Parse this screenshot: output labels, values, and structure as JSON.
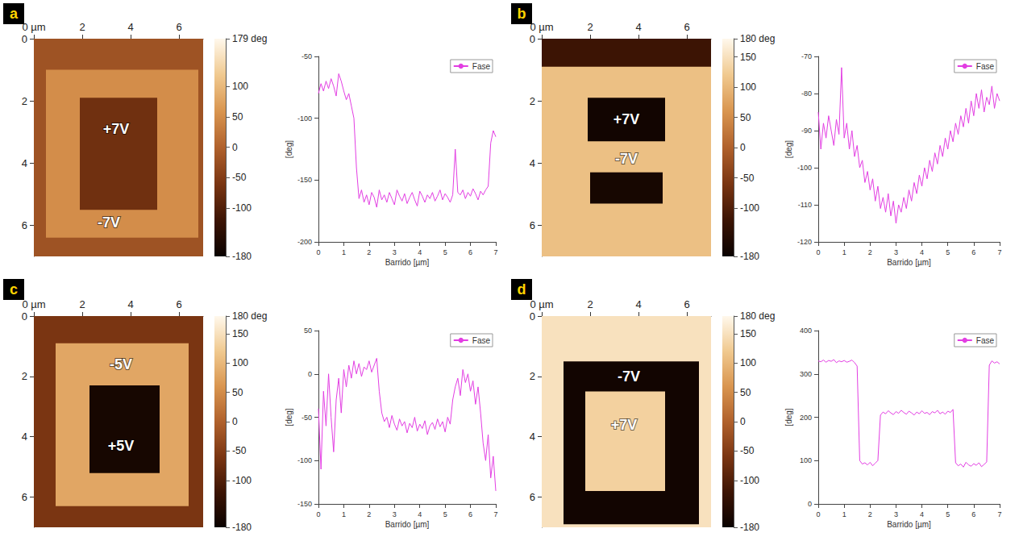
{
  "chart_data": [
    {
      "type": "heatmap",
      "title": "a",
      "xlim": [
        0,
        7
      ],
      "ylim": [
        0,
        7
      ],
      "xticks": [
        {
          "value": 0,
          "label": "0 µm"
        },
        2,
        4,
        6
      ],
      "yticks": [
        0,
        2,
        4,
        6
      ],
      "regions": [
        {
          "x": [
            0,
            7
          ],
          "y": [
            0,
            7
          ],
          "value": -20
        },
        {
          "x": [
            0.5,
            6.8
          ],
          "y": [
            1.0,
            6.4
          ],
          "value": 50
        },
        {
          "x": [
            1.9,
            5.1
          ],
          "y": [
            1.9,
            5.5
          ],
          "value": -70
        }
      ],
      "annotations": [
        {
          "text": "+7V",
          "x": 3.4,
          "y": 2.9
        },
        {
          "text": "-7V",
          "x": 3.1,
          "y": 5.9
        }
      ],
      "colorbar": {
        "range": [
          -180,
          179
        ],
        "ticks": [
          {
            "value": 179,
            "label": "179 deg"
          },
          100,
          50,
          0,
          -50,
          -100,
          -180
        ]
      }
    },
    {
      "type": "line",
      "xlabel": "Barrido [µm]",
      "ylabel": "[deg]",
      "legend": "upper right",
      "grid": false,
      "xlim": [
        0,
        7
      ],
      "xticks": [
        0,
        1,
        2,
        3,
        4,
        5,
        6,
        7
      ],
      "ylim": [
        -200,
        -50
      ],
      "yticks": [
        -200,
        -150,
        -100,
        -50
      ],
      "x": [
        0,
        0.1,
        0.2,
        0.3,
        0.4,
        0.5,
        0.6,
        0.7,
        0.8,
        0.9,
        1,
        1.1,
        1.2,
        1.3,
        1.4,
        1.5,
        1.6,
        1.7,
        1.8,
        1.9,
        2,
        2.1,
        2.2,
        2.3,
        2.4,
        2.5,
        2.6,
        2.7,
        2.8,
        2.9,
        3,
        3.1,
        3.2,
        3.3,
        3.4,
        3.5,
        3.6,
        3.7,
        3.8,
        3.9,
        4,
        4.1,
        4.2,
        4.3,
        4.4,
        4.5,
        4.6,
        4.7,
        4.8,
        4.9,
        5,
        5.1,
        5.2,
        5.3,
        5.4,
        5.5,
        5.6,
        5.7,
        5.8,
        5.9,
        6,
        6.1,
        6.2,
        6.3,
        6.4,
        6.5,
        6.6,
        6.7,
        6.8,
        6.9,
        7
      ],
      "series": [
        {
          "name": "Fase",
          "color": "#e23ee2",
          "values": [
            -80,
            -72,
            -78,
            -70,
            -76,
            -68,
            -74,
            -82,
            -64,
            -70,
            -78,
            -85,
            -80,
            -90,
            -100,
            -140,
            -165,
            -158,
            -168,
            -162,
            -170,
            -160,
            -164,
            -172,
            -158,
            -166,
            -162,
            -168,
            -160,
            -165,
            -170,
            -158,
            -163,
            -167,
            -161,
            -169,
            -164,
            -160,
            -166,
            -171,
            -159,
            -163,
            -168,
            -162,
            -165,
            -160,
            -167,
            -163,
            -158,
            -166,
            -161,
            -164,
            -168,
            -162,
            -125,
            -160,
            -162,
            -158,
            -165,
            -160,
            -163,
            -157,
            -161,
            -166,
            -159,
            -162,
            -158,
            -155,
            -120,
            -110,
            -115
          ]
        }
      ]
    },
    {
      "type": "heatmap",
      "title": "b",
      "xlim": [
        0,
        7
      ],
      "ylim": [
        0,
        7
      ],
      "xticks": [
        {
          "value": 0,
          "label": "0 µm"
        },
        2,
        4,
        6
      ],
      "yticks": [
        0,
        2,
        4,
        6
      ],
      "regions": [
        {
          "x": [
            0,
            7
          ],
          "y": [
            0,
            7
          ],
          "value": -120
        },
        {
          "x": [
            0,
            7
          ],
          "y": [
            0.9,
            7
          ],
          "value": 110
        },
        {
          "x": [
            1.9,
            5.1
          ],
          "y": [
            1.9,
            3.3
          ],
          "value": -170
        },
        {
          "x": [
            2.0,
            5.0
          ],
          "y": [
            4.3,
            5.3
          ],
          "value": -165
        }
      ],
      "annotations": [
        {
          "text": "+7V",
          "x": 3.5,
          "y": 2.6
        },
        {
          "text": "-7V",
          "x": 3.5,
          "y": 3.85
        }
      ],
      "colorbar": {
        "range": [
          -180,
          180
        ],
        "ticks": [
          {
            "value": 180,
            "label": "180 deg"
          },
          150,
          100,
          50,
          0,
          -50,
          -100,
          -180
        ]
      }
    },
    {
      "type": "line",
      "xlabel": "Barrido [µm]",
      "ylabel": "[deg]",
      "legend": "upper right",
      "grid": false,
      "xlim": [
        0,
        7
      ],
      "xticks": [
        0,
        1,
        2,
        3,
        4,
        5,
        6,
        7
      ],
      "ylim": [
        -120,
        -70
      ],
      "yticks": [
        -120,
        -110,
        -100,
        -90,
        -80,
        -70
      ],
      "x": [
        0,
        0.1,
        0.2,
        0.3,
        0.4,
        0.5,
        0.6,
        0.7,
        0.8,
        0.9,
        1,
        1.1,
        1.2,
        1.3,
        1.4,
        1.5,
        1.6,
        1.7,
        1.8,
        1.9,
        2,
        2.1,
        2.2,
        2.3,
        2.4,
        2.5,
        2.6,
        2.7,
        2.8,
        2.9,
        3,
        3.1,
        3.2,
        3.3,
        3.4,
        3.5,
        3.6,
        3.7,
        3.8,
        3.9,
        4,
        4.1,
        4.2,
        4.3,
        4.4,
        4.5,
        4.6,
        4.7,
        4.8,
        4.9,
        5,
        5.1,
        5.2,
        5.3,
        5.4,
        5.5,
        5.6,
        5.7,
        5.8,
        5.9,
        6,
        6.1,
        6.2,
        6.3,
        6.4,
        6.5,
        6.6,
        6.7,
        6.8,
        6.9,
        7
      ],
      "series": [
        {
          "name": "Fase",
          "color": "#e23ee2",
          "values": [
            -85,
            -95,
            -88,
            -92,
            -86,
            -90,
            -94,
            -87,
            -91,
            -73,
            -92,
            -88,
            -95,
            -90,
            -97,
            -94,
            -100,
            -98,
            -104,
            -101,
            -106,
            -103,
            -109,
            -105,
            -111,
            -108,
            -112,
            -107,
            -113,
            -109,
            -115,
            -110,
            -112,
            -108,
            -111,
            -106,
            -109,
            -104,
            -107,
            -102,
            -105,
            -100,
            -103,
            -98,
            -101,
            -96,
            -99,
            -94,
            -97,
            -92,
            -95,
            -90,
            -93,
            -88,
            -91,
            -86,
            -89,
            -84,
            -88,
            -82,
            -86,
            -80,
            -84,
            -79,
            -85,
            -81,
            -83,
            -78,
            -84,
            -80,
            -82
          ]
        }
      ]
    },
    {
      "type": "heatmap",
      "title": "c",
      "xlim": [
        0,
        7
      ],
      "ylim": [
        0,
        7
      ],
      "xticks": [
        {
          "value": 0,
          "label": "0 µm"
        },
        2,
        4,
        6
      ],
      "yticks": [
        0,
        2,
        4,
        6
      ],
      "regions": [
        {
          "x": [
            0,
            7
          ],
          "y": [
            0,
            7
          ],
          "value": -60
        },
        {
          "x": [
            0.9,
            6.4
          ],
          "y": [
            0.9,
            6.3
          ],
          "value": 80
        },
        {
          "x": [
            2.3,
            5.2
          ],
          "y": [
            2.3,
            5.2
          ],
          "value": -165
        }
      ],
      "annotations": [
        {
          "text": "-5V",
          "x": 3.6,
          "y": 1.6
        },
        {
          "text": "+5V",
          "x": 3.6,
          "y": 4.3
        }
      ],
      "colorbar": {
        "range": [
          -180,
          180
        ],
        "ticks": [
          {
            "value": 180,
            "label": "180 deg"
          },
          150,
          100,
          50,
          0,
          -50,
          -100,
          -180
        ]
      }
    },
    {
      "type": "line",
      "xlabel": "Barrido [µm]",
      "ylabel": "[deg]",
      "legend": "upper right",
      "grid": false,
      "xlim": [
        0,
        7
      ],
      "xticks": [
        0,
        1,
        2,
        3,
        4,
        5,
        6,
        7
      ],
      "ylim": [
        -150,
        50
      ],
      "yticks": [
        -150,
        -100,
        -50,
        0,
        50
      ],
      "x": [
        0,
        0.1,
        0.2,
        0.3,
        0.4,
        0.5,
        0.6,
        0.7,
        0.8,
        0.9,
        1,
        1.1,
        1.2,
        1.3,
        1.4,
        1.5,
        1.6,
        1.7,
        1.8,
        1.9,
        2,
        2.1,
        2.2,
        2.3,
        2.4,
        2.5,
        2.6,
        2.7,
        2.8,
        2.9,
        3,
        3.1,
        3.2,
        3.3,
        3.4,
        3.5,
        3.6,
        3.7,
        3.8,
        3.9,
        4,
        4.1,
        4.2,
        4.3,
        4.4,
        4.5,
        4.6,
        4.7,
        4.8,
        4.9,
        5,
        5.1,
        5.2,
        5.3,
        5.4,
        5.5,
        5.6,
        5.7,
        5.8,
        5.9,
        6,
        6.1,
        6.2,
        6.3,
        6.4,
        6.5,
        6.6,
        6.7,
        6.8,
        6.9,
        7
      ],
      "series": [
        {
          "name": "Fase",
          "color": "#e23ee2",
          "values": [
            -40,
            -110,
            -20,
            -60,
            0,
            -50,
            -90,
            -30,
            -5,
            -45,
            5,
            -15,
            10,
            -5,
            15,
            0,
            12,
            -3,
            8,
            5,
            15,
            2,
            10,
            18,
            -20,
            -45,
            -55,
            -50,
            -62,
            -48,
            -58,
            -65,
            -52,
            -60,
            -55,
            -68,
            -57,
            -62,
            -50,
            -66,
            -58,
            -63,
            -54,
            -70,
            -60,
            -56,
            -64,
            -52,
            -61,
            -55,
            -67,
            -50,
            -58,
            -30,
            -15,
            -5,
            -25,
            5,
            -10,
            0,
            -20,
            -8,
            -35,
            -15,
            -45,
            -80,
            -100,
            -70,
            -120,
            -95,
            -135
          ]
        }
      ]
    },
    {
      "type": "heatmap",
      "title": "d",
      "xlim": [
        0,
        7
      ],
      "ylim": [
        0,
        7
      ],
      "xticks": [
        {
          "value": 0,
          "label": "0 µm"
        },
        2,
        4,
        6
      ],
      "yticks": [
        0,
        2,
        4,
        6
      ],
      "regions": [
        {
          "x": [
            0,
            7
          ],
          "y": [
            0,
            7
          ],
          "value": 150
        },
        {
          "x": [
            0.9,
            6.5
          ],
          "y": [
            1.5,
            6.9
          ],
          "value": -170
        },
        {
          "x": [
            1.8,
            5.1
          ],
          "y": [
            2.5,
            5.8
          ],
          "value": 130
        }
      ],
      "annotations": [
        {
          "text": "-7V",
          "x": 3.6,
          "y": 2.0
        },
        {
          "text": "+7V",
          "x": 3.4,
          "y": 3.6
        }
      ],
      "colorbar": {
        "range": [
          -180,
          180
        ],
        "ticks": [
          {
            "value": 180,
            "label": "180 deg"
          },
          150,
          100,
          50,
          0,
          -50,
          -100,
          -180
        ]
      }
    },
    {
      "type": "line",
      "xlabel": "Barrido [µm]",
      "ylabel": "[deg]",
      "legend": "upper right",
      "grid": false,
      "xlim": [
        0,
        7
      ],
      "xticks": [
        0,
        1,
        2,
        3,
        4,
        5,
        6,
        7
      ],
      "ylim": [
        0,
        400
      ],
      "yticks": [
        0,
        100,
        200,
        300,
        400
      ],
      "x": [
        0,
        0.1,
        0.2,
        0.3,
        0.4,
        0.5,
        0.6,
        0.7,
        0.8,
        0.9,
        1,
        1.1,
        1.2,
        1.3,
        1.4,
        1.5,
        1.6,
        1.7,
        1.8,
        1.9,
        2,
        2.1,
        2.2,
        2.3,
        2.4,
        2.5,
        2.6,
        2.7,
        2.8,
        2.9,
        3,
        3.1,
        3.2,
        3.3,
        3.4,
        3.5,
        3.6,
        3.7,
        3.8,
        3.9,
        4,
        4.1,
        4.2,
        4.3,
        4.4,
        4.5,
        4.6,
        4.7,
        4.8,
        4.9,
        5,
        5.1,
        5.2,
        5.3,
        5.4,
        5.5,
        5.6,
        5.7,
        5.8,
        5.9,
        6,
        6.1,
        6.2,
        6.3,
        6.4,
        6.5,
        6.6,
        6.7,
        6.8,
        6.9,
        7
      ],
      "series": [
        {
          "name": "Fase",
          "color": "#e23ee2",
          "values": [
            330,
            328,
            332,
            327,
            331,
            329,
            333,
            326,
            330,
            328,
            331,
            327,
            329,
            332,
            326,
            318,
            100,
            92,
            95,
            90,
            96,
            88,
            94,
            100,
            205,
            212,
            208,
            215,
            210,
            206,
            213,
            209,
            216,
            211,
            207,
            214,
            210,
            205,
            212,
            208,
            215,
            209,
            211,
            206,
            213,
            210,
            216,
            208,
            212,
            207,
            214,
            211,
            218,
            95,
            88,
            92,
            85,
            96,
            90,
            87,
            93,
            89,
            95,
            86,
            91,
            97,
            320,
            330,
            325,
            328,
            323
          ]
        }
      ]
    }
  ]
}
